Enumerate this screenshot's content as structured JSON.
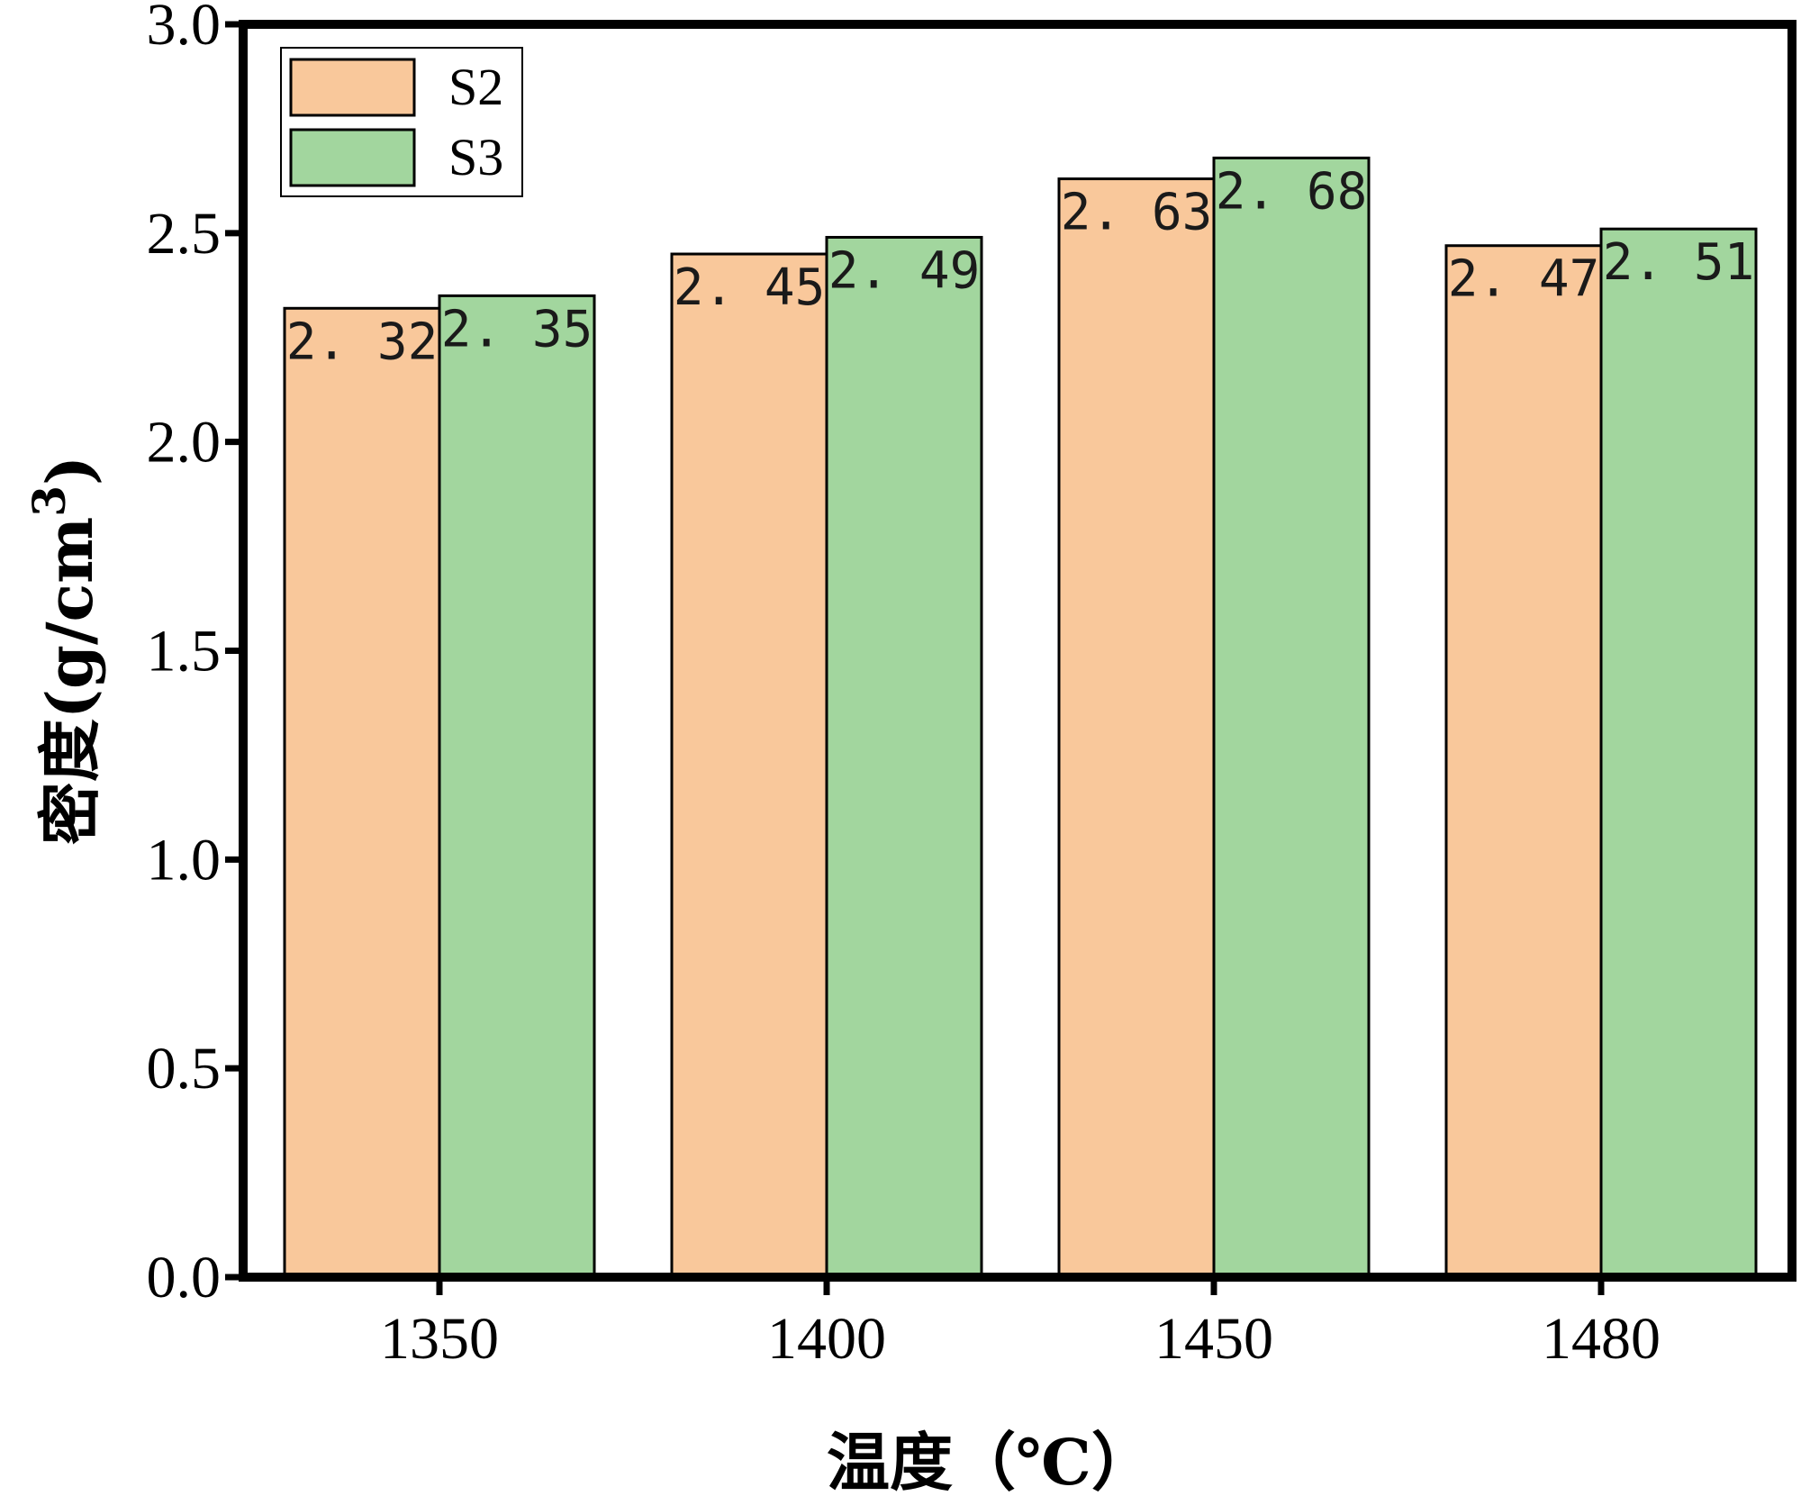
{
  "chart_data": {
    "type": "bar",
    "categories": [
      "1350",
      "1400",
      "1450",
      "1480"
    ],
    "series": [
      {
        "name": "S2",
        "values": [
          2.32,
          2.45,
          2.63,
          2.47
        ],
        "labels": [
          "2. 32",
          "2. 45",
          "2. 63",
          "2. 47"
        ],
        "color": "#F9C89B"
      },
      {
        "name": "S3",
        "values": [
          2.35,
          2.49,
          2.68,
          2.51
        ],
        "labels": [
          "2. 35",
          "2. 49",
          "2. 68",
          "2. 51"
        ],
        "color": "#A2D69E"
      }
    ],
    "xlabel": "温度（℃）",
    "ylabel_main": "密度(g/cm",
    "ylabel_sup": "3",
    "ylabel_end": ")",
    "ylim": [
      0,
      3.0
    ],
    "yticks": [
      0.0,
      0.5,
      1.0,
      1.5,
      2.0,
      2.5,
      3.0
    ],
    "ytick_labels": [
      "0.0",
      "0.5",
      "1.0",
      "1.5",
      "2.0",
      "2.5",
      "3.0"
    ],
    "legend_position": "top-left",
    "grid": false
  }
}
